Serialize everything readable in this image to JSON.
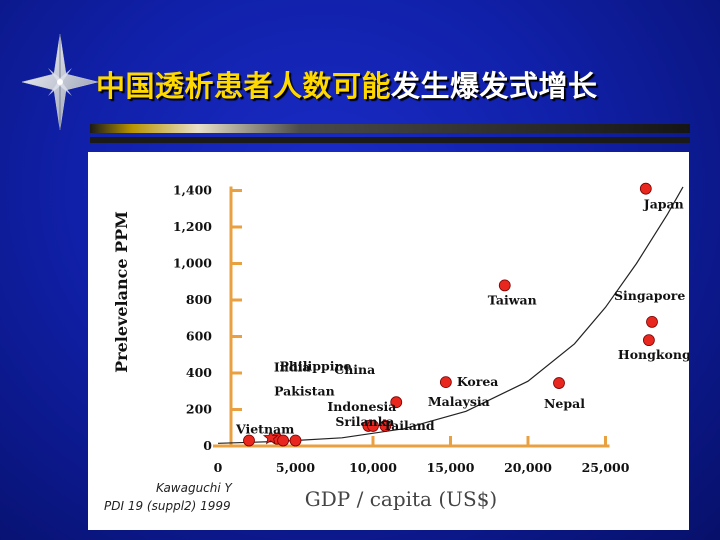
{
  "slide": {
    "title_highlight": "中国透析患者人数可能",
    "title_rest": "发生爆发式增长",
    "colors": {
      "background": "#1020a8",
      "title_highlight": "#ffd800",
      "title_rest": "#ffffff",
      "rule_accent": "#b89400",
      "rule_dark": "#1a1a1a",
      "card": "#ffffff"
    },
    "decoration": "compass-star-icon"
  },
  "chart_data": {
    "type": "scatter",
    "title": "",
    "ylabel": "Prelevelance PPM",
    "xlabel": "GDP / capita (US$)",
    "xlim": [
      0,
      27000
    ],
    "ylim": [
      0,
      1400
    ],
    "x_ticks": [
      0,
      5000,
      10000,
      15000,
      20000,
      25000
    ],
    "x_tick_labels": [
      "0",
      "5,000",
      "10,000",
      "15,000",
      "20,000",
      "25,000"
    ],
    "y_ticks": [
      0,
      200,
      400,
      600,
      800,
      1000,
      1200,
      1400
    ],
    "y_tick_labels": [
      "0",
      "200",
      "400",
      "600",
      "800",
      "1,000",
      "1,200",
      "1,400"
    ],
    "grid": false,
    "axis_color": "#e8a040",
    "marker_color": "#e8281e",
    "points": [
      {
        "label": "Vietnam",
        "x": 2000,
        "y": 30
      },
      {
        "label": "India",
        "x": 3800,
        "y": 40
      },
      {
        "label": "Pakistan",
        "x": 4200,
        "y": 30
      },
      {
        "label": "Philippine",
        "x": 5000,
        "y": 30
      },
      {
        "label": "Sri Lanka",
        "x": 9700,
        "y": 110
      },
      {
        "label": "China",
        "x": 11500,
        "y": 240
      },
      {
        "label": "Indonesia",
        "x": 10800,
        "y": 110
      },
      {
        "label": "Malaysia",
        "x": 14700,
        "y": 350
      },
      {
        "label": "Korea",
        "x": 14700,
        "y": 350
      },
      {
        "label": "Tailand",
        "x": 10000,
        "y": 110
      },
      {
        "label": "Taiwan",
        "x": 18500,
        "y": 880
      },
      {
        "label": "Nepal",
        "x": 22000,
        "y": 345
      },
      {
        "label": "Japan",
        "x": 27600,
        "y": 1410
      },
      {
        "label": "Singapore",
        "x": 28000,
        "y": 680
      },
      {
        "label": "Hongkong",
        "x": 27800,
        "y": 580
      }
    ],
    "star_marker": {
      "x": 3400,
      "y": 45
    },
    "trend_curve": [
      [
        0,
        15
      ],
      [
        4000,
        25
      ],
      [
        8000,
        45
      ],
      [
        12000,
        95
      ],
      [
        16000,
        190
      ],
      [
        20000,
        355
      ],
      [
        23000,
        560
      ],
      [
        25000,
        760
      ],
      [
        27000,
        1000
      ],
      [
        29000,
        1270
      ],
      [
        30000,
        1420
      ]
    ],
    "source": [
      "Kawaguchi Y",
      "PDI 19 (suppl2) 1999"
    ]
  }
}
